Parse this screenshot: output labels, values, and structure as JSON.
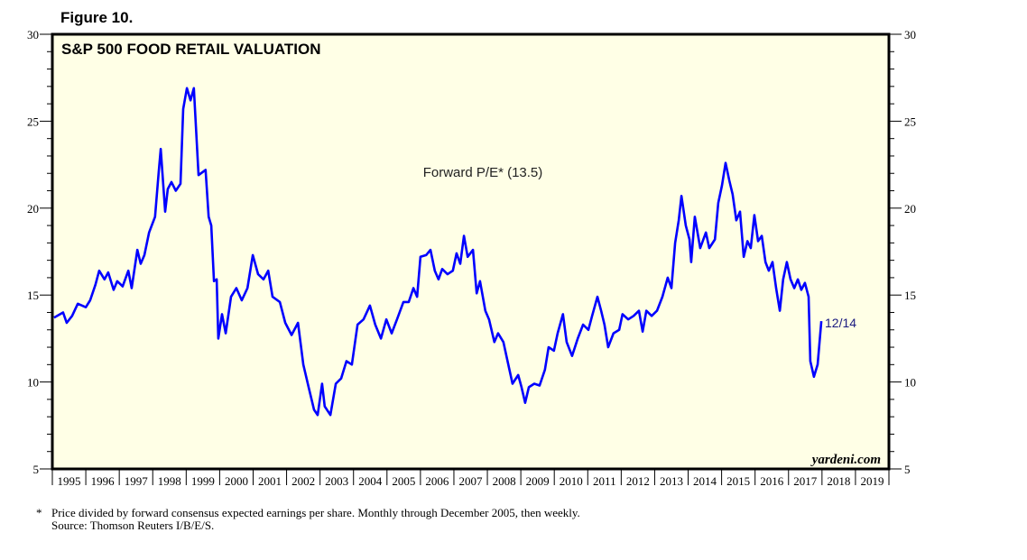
{
  "figure_label": "Figure 10.",
  "footnote": "Price divided by forward consensus expected earnings per share. Monthly through December 2005, then weekly.",
  "footnote_marker": "*",
  "source": "Source: Thomson Reuters I/B/E/S.",
  "chart_data": {
    "type": "line",
    "title": "S&P 500 FOOD RETAIL VALUATION",
    "watermark": "yardeni.com",
    "annotation": "Forward P/E* (13.5)",
    "end_label": "12/14",
    "xlim": [
      1995,
      2020
    ],
    "ylim": [
      5,
      30
    ],
    "yticks": [
      5,
      10,
      15,
      20,
      25,
      30
    ],
    "xtick_labels": [
      "1995",
      "1996",
      "1997",
      "1998",
      "1999",
      "2000",
      "2001",
      "2002",
      "2003",
      "2004",
      "2005",
      "2006",
      "2007",
      "2008",
      "2009",
      "2010",
      "2011",
      "2012",
      "2013",
      "2014",
      "2015",
      "2016",
      "2017",
      "2018",
      "2019"
    ],
    "right_axis": true,
    "grid": false,
    "colors": {
      "line": "#0000ff",
      "plot_bg": "#ffffe6",
      "label": "#1a1a80"
    },
    "series": [
      {
        "points": [
          [
            1995.05,
            13.7
          ],
          [
            1995.32,
            14.0
          ],
          [
            1995.43,
            13.4
          ],
          [
            1995.59,
            13.8
          ],
          [
            1995.76,
            14.5
          ],
          [
            1996.0,
            14.3
          ],
          [
            1996.13,
            14.7
          ],
          [
            1996.29,
            15.6
          ],
          [
            1996.4,
            16.4
          ],
          [
            1996.56,
            15.9
          ],
          [
            1996.67,
            16.3
          ],
          [
            1996.83,
            15.3
          ],
          [
            1996.94,
            15.8
          ],
          [
            1997.1,
            15.5
          ],
          [
            1997.27,
            16.4
          ],
          [
            1997.37,
            15.4
          ],
          [
            1997.54,
            17.6
          ],
          [
            1997.64,
            16.8
          ],
          [
            1997.75,
            17.3
          ],
          [
            1997.89,
            18.6
          ],
          [
            1998.07,
            19.5
          ],
          [
            1998.18,
            22.1
          ],
          [
            1998.24,
            23.4
          ],
          [
            1998.37,
            19.8
          ],
          [
            1998.45,
            21.1
          ],
          [
            1998.56,
            21.5
          ],
          [
            1998.69,
            21.0
          ],
          [
            1998.83,
            21.4
          ],
          [
            1998.91,
            25.7
          ],
          [
            1999.02,
            26.9
          ],
          [
            1999.13,
            26.2
          ],
          [
            1999.23,
            26.9
          ],
          [
            1999.37,
            21.9
          ],
          [
            1999.58,
            22.2
          ],
          [
            1999.67,
            19.5
          ],
          [
            1999.75,
            19.0
          ],
          [
            1999.83,
            15.8
          ],
          [
            1999.91,
            15.9
          ],
          [
            1999.96,
            12.5
          ],
          [
            2000.07,
            13.9
          ],
          [
            2000.18,
            12.8
          ],
          [
            2000.34,
            14.9
          ],
          [
            2000.5,
            15.4
          ],
          [
            2000.66,
            14.7
          ],
          [
            2000.83,
            15.4
          ],
          [
            2000.99,
            17.3
          ],
          [
            2001.15,
            16.2
          ],
          [
            2001.31,
            15.9
          ],
          [
            2001.45,
            16.4
          ],
          [
            2001.58,
            14.9
          ],
          [
            2001.8,
            14.6
          ],
          [
            2001.96,
            13.4
          ],
          [
            2002.15,
            12.7
          ],
          [
            2002.34,
            13.4
          ],
          [
            2002.5,
            11.0
          ],
          [
            2002.66,
            9.7
          ],
          [
            2002.82,
            8.4
          ],
          [
            2002.93,
            8.1
          ],
          [
            2003.06,
            9.9
          ],
          [
            2003.14,
            8.6
          ],
          [
            2003.31,
            8.1
          ],
          [
            2003.47,
            9.9
          ],
          [
            2003.63,
            10.2
          ],
          [
            2003.79,
            11.2
          ],
          [
            2003.95,
            11.0
          ],
          [
            2004.12,
            13.3
          ],
          [
            2004.3,
            13.6
          ],
          [
            2004.49,
            14.4
          ],
          [
            2004.65,
            13.3
          ],
          [
            2004.82,
            12.5
          ],
          [
            2004.98,
            13.6
          ],
          [
            2005.14,
            12.8
          ],
          [
            2005.3,
            13.6
          ],
          [
            2005.49,
            14.6
          ],
          [
            2005.65,
            14.6
          ],
          [
            2005.79,
            15.4
          ],
          [
            2005.9,
            14.9
          ],
          [
            2006.0,
            17.2
          ],
          [
            2006.17,
            17.3
          ],
          [
            2006.3,
            17.6
          ],
          [
            2006.43,
            16.4
          ],
          [
            2006.54,
            15.9
          ],
          [
            2006.65,
            16.5
          ],
          [
            2006.81,
            16.2
          ],
          [
            2006.97,
            16.4
          ],
          [
            2007.08,
            17.4
          ],
          [
            2007.19,
            16.8
          ],
          [
            2007.3,
            18.4
          ],
          [
            2007.41,
            17.2
          ],
          [
            2007.57,
            17.6
          ],
          [
            2007.68,
            15.1
          ],
          [
            2007.78,
            15.8
          ],
          [
            2007.94,
            14.1
          ],
          [
            2008.05,
            13.6
          ],
          [
            2008.21,
            12.3
          ],
          [
            2008.32,
            12.8
          ],
          [
            2008.48,
            12.3
          ],
          [
            2008.65,
            10.8
          ],
          [
            2008.75,
            9.9
          ],
          [
            2008.92,
            10.4
          ],
          [
            2009.02,
            9.7
          ],
          [
            2009.13,
            8.8
          ],
          [
            2009.24,
            9.7
          ],
          [
            2009.4,
            9.9
          ],
          [
            2009.56,
            9.8
          ],
          [
            2009.72,
            10.7
          ],
          [
            2009.83,
            12.0
          ],
          [
            2009.99,
            11.8
          ],
          [
            2010.1,
            12.8
          ],
          [
            2010.26,
            13.9
          ],
          [
            2010.37,
            12.3
          ],
          [
            2010.53,
            11.5
          ],
          [
            2010.7,
            12.5
          ],
          [
            2010.86,
            13.3
          ],
          [
            2011.02,
            13.0
          ],
          [
            2011.13,
            13.8
          ],
          [
            2011.29,
            14.9
          ],
          [
            2011.4,
            14.1
          ],
          [
            2011.5,
            13.3
          ],
          [
            2011.61,
            12.0
          ],
          [
            2011.77,
            12.8
          ],
          [
            2011.94,
            13.0
          ],
          [
            2012.04,
            13.9
          ],
          [
            2012.21,
            13.6
          ],
          [
            2012.37,
            13.8
          ],
          [
            2012.53,
            14.1
          ],
          [
            2012.64,
            12.9
          ],
          [
            2012.75,
            14.1
          ],
          [
            2012.91,
            13.8
          ],
          [
            2013.07,
            14.1
          ],
          [
            2013.23,
            14.9
          ],
          [
            2013.39,
            16.0
          ],
          [
            2013.5,
            15.4
          ],
          [
            2013.61,
            18.0
          ],
          [
            2013.72,
            19.3
          ],
          [
            2013.8,
            20.7
          ],
          [
            2013.93,
            19.0
          ],
          [
            2014.04,
            18.2
          ],
          [
            2014.09,
            16.9
          ],
          [
            2014.2,
            19.5
          ],
          [
            2014.36,
            17.7
          ],
          [
            2014.53,
            18.6
          ],
          [
            2014.63,
            17.7
          ],
          [
            2014.8,
            18.2
          ],
          [
            2014.9,
            20.3
          ],
          [
            2015.01,
            21.3
          ],
          [
            2015.12,
            22.6
          ],
          [
            2015.23,
            21.6
          ],
          [
            2015.33,
            20.8
          ],
          [
            2015.44,
            19.3
          ],
          [
            2015.55,
            19.8
          ],
          [
            2015.66,
            17.2
          ],
          [
            2015.77,
            18.1
          ],
          [
            2015.87,
            17.7
          ],
          [
            2015.98,
            19.6
          ],
          [
            2016.09,
            18.1
          ],
          [
            2016.2,
            18.4
          ],
          [
            2016.31,
            16.9
          ],
          [
            2016.41,
            16.4
          ],
          [
            2016.52,
            16.9
          ],
          [
            2016.63,
            15.4
          ],
          [
            2016.74,
            14.1
          ],
          [
            2016.84,
            15.9
          ],
          [
            2016.95,
            16.9
          ],
          [
            2017.06,
            15.9
          ],
          [
            2017.17,
            15.4
          ],
          [
            2017.28,
            15.9
          ],
          [
            2017.38,
            15.3
          ],
          [
            2017.49,
            15.7
          ],
          [
            2017.6,
            14.9
          ],
          [
            2017.65,
            11.2
          ],
          [
            2017.76,
            10.3
          ],
          [
            2017.87,
            11.0
          ],
          [
            2017.98,
            13.5
          ]
        ]
      }
    ]
  }
}
